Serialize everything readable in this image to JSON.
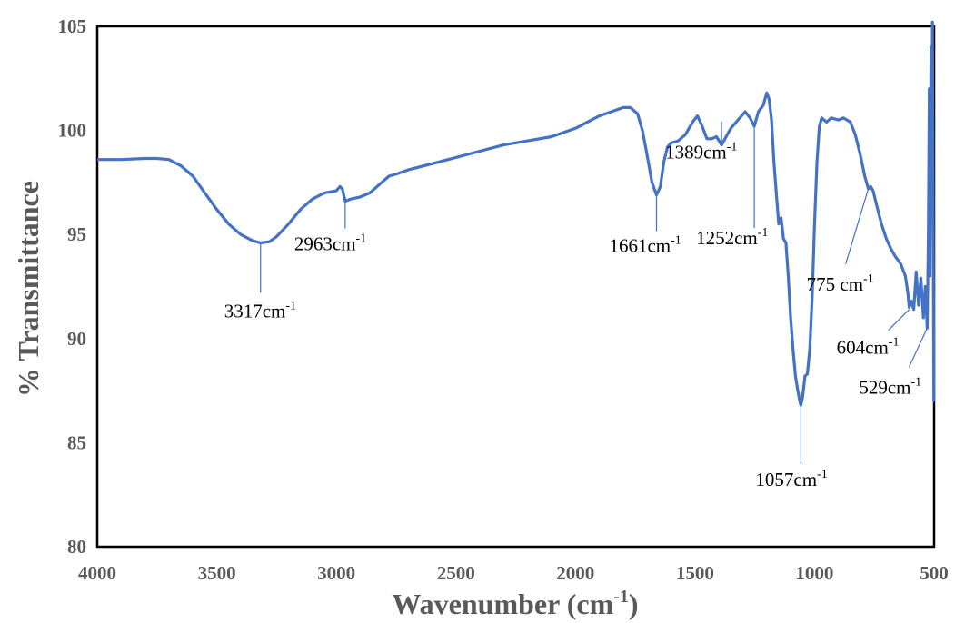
{
  "chart_data": {
    "type": "line",
    "xlabel": "Wavenumber (cm",
    "xlabel_sup": "-1",
    "xlabel_tail": ")",
    "ylabel": "% Transmittance",
    "xlim": [
      4000,
      500
    ],
    "ylim": [
      80,
      105
    ],
    "x_ticks": [
      "4000",
      "3500",
      "3000",
      "2500",
      "2000",
      "1500",
      "1000",
      "500"
    ],
    "y_ticks": [
      "80",
      "85",
      "90",
      "95",
      "100",
      "105"
    ],
    "line_color": "#4472C4",
    "grid": false,
    "series": [
      {
        "x": [
          4000,
          3900,
          3800,
          3750,
          3700,
          3650,
          3600,
          3550,
          3500,
          3450,
          3400,
          3350,
          3317,
          3280,
          3250,
          3200,
          3150,
          3100,
          3050,
          3000,
          2985,
          2975,
          2963,
          2940,
          2900,
          2860,
          2830,
          2800,
          2780,
          2750,
          2700,
          2600,
          2500,
          2400,
          2300,
          2200,
          2100,
          2000,
          1950,
          1900,
          1850,
          1800,
          1770,
          1740,
          1720,
          1700,
          1680,
          1661,
          1645,
          1630,
          1615,
          1600,
          1570,
          1540,
          1510,
          1490,
          1470,
          1450,
          1430,
          1410,
          1389,
          1370,
          1350,
          1320,
          1290,
          1270,
          1252,
          1235,
          1215,
          1200,
          1190,
          1180,
          1170,
          1160,
          1150,
          1140,
          1130,
          1120,
          1110,
          1100,
          1090,
          1080,
          1070,
          1060,
          1057,
          1050,
          1040,
          1030,
          1020,
          1010,
          1000,
          990,
          980,
          970,
          960,
          950,
          930,
          900,
          880,
          850,
          830,
          810,
          790,
          775,
          765,
          755,
          740,
          720,
          700,
          680,
          660,
          640,
          620,
          610,
          604,
          595,
          585,
          575,
          565,
          555,
          545,
          537,
          529,
          524,
          520,
          517,
          513,
          510,
          507,
          504,
          501,
          500
        ],
        "y": [
          98.6,
          98.6,
          98.65,
          98.65,
          98.6,
          98.3,
          97.8,
          97.0,
          96.2,
          95.5,
          95.0,
          94.7,
          94.6,
          94.65,
          94.9,
          95.5,
          96.2,
          96.7,
          97.0,
          97.1,
          97.3,
          97.2,
          96.6,
          96.7,
          96.8,
          97.0,
          97.3,
          97.6,
          97.8,
          97.9,
          98.1,
          98.4,
          98.7,
          99.0,
          99.3,
          99.5,
          99.7,
          100.1,
          100.4,
          100.7,
          100.9,
          101.1,
          101.1,
          100.8,
          100.0,
          98.8,
          97.5,
          96.9,
          97.3,
          98.5,
          99.2,
          99.4,
          99.5,
          99.8,
          100.4,
          100.7,
          100.2,
          99.6,
          99.6,
          99.7,
          99.3,
          99.7,
          100.1,
          100.5,
          100.9,
          100.6,
          100.2,
          100.9,
          101.2,
          101.8,
          101.5,
          100.5,
          98.5,
          97.0,
          95.5,
          95.8,
          94.8,
          94.6,
          93.0,
          91.0,
          89.5,
          88.2,
          87.5,
          86.9,
          86.8,
          87.2,
          88.2,
          88.3,
          89.5,
          92.0,
          95.5,
          98.5,
          100.2,
          100.6,
          100.5,
          100.4,
          100.6,
          100.5,
          100.6,
          100.4,
          99.8,
          98.9,
          97.8,
          97.2,
          97.3,
          97.1,
          96.4,
          95.5,
          94.8,
          94.3,
          93.9,
          93.6,
          93.0,
          92.2,
          91.5,
          91.8,
          91.4,
          93.2,
          91.6,
          92.9,
          91.0,
          92.5,
          90.5,
          95.0,
          102.0,
          93.0,
          104.0,
          96.5,
          105.2,
          97.0,
          87.0,
          87.0
        ]
      }
    ],
    "annotations": [
      {
        "label": "3317cm",
        "sup": "-1",
        "x": 3317,
        "y": 94.6
      },
      {
        "label": "2963cm",
        "sup": "-1",
        "x": 2963,
        "y": 96.6
      },
      {
        "label": "1661cm",
        "sup": "-1",
        "x": 1661,
        "y": 96.9
      },
      {
        "label": "1389cm",
        "sup": "-1",
        "x": 1389,
        "y": 99.3
      },
      {
        "label": "1252cm",
        "sup": "-1",
        "x": 1252,
        "y": 100.2
      },
      {
        "label": "1057cm",
        "sup": "-1",
        "x": 1057,
        "y": 86.8
      },
      {
        "label": "775 cm",
        "sup": "-1",
        "x": 775,
        "y": 97.2
      },
      {
        "label": "604cm",
        "sup": "-1",
        "x": 604,
        "y": 91.4
      },
      {
        "label": "529cm",
        "sup": "-1",
        "x": 529,
        "y": 90.5
      }
    ]
  }
}
